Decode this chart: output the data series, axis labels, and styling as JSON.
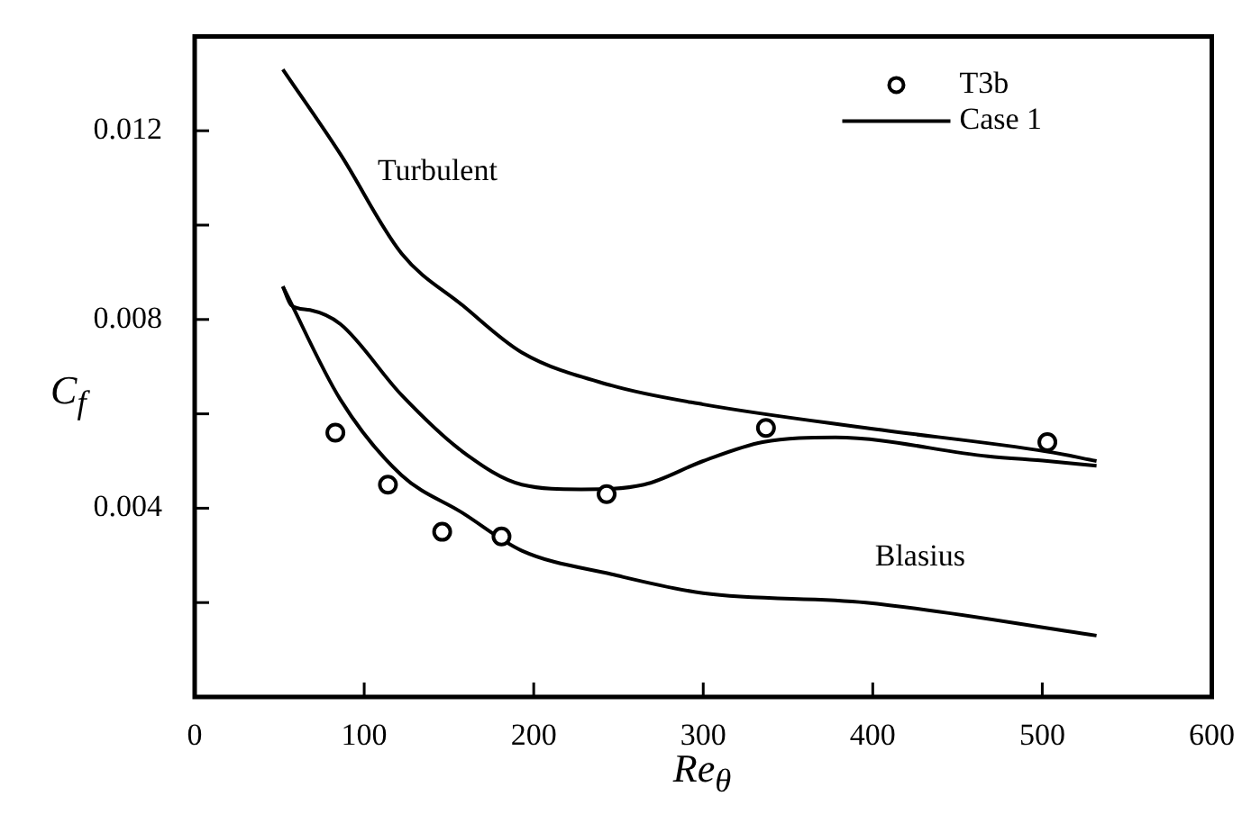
{
  "chart_data": {
    "type": "line",
    "xlabel": "Re$_{θ}$",
    "ylabel": "C$_{f}$",
    "xlim": [
      0,
      600
    ],
    "xticks": [
      0,
      100,
      200,
      300,
      400,
      500,
      600
    ],
    "ylim": [
      0,
      0.014
    ],
    "yticks": [
      {
        "value": 0.002,
        "label": null
      },
      {
        "value": 0.004,
        "label": "0.004"
      },
      {
        "value": 0.006,
        "label": null
      },
      {
        "value": 0.008,
        "label": "0.008"
      },
      {
        "value": 0.01,
        "label": null
      },
      {
        "value": 0.012,
        "label": "0.012"
      }
    ],
    "legend": "top right",
    "annotations": [
      "Turbulent",
      "Blasius"
    ],
    "series": [
      {
        "name": "T3b",
        "type": "scatter",
        "marker": "circle",
        "color": "#000000",
        "x": [
          83,
          114,
          146,
          181,
          243,
          337,
          503
        ],
        "values": [
          0.0056,
          0.0045,
          0.0035,
          0.0034,
          0.0043,
          0.0057,
          0.0054
        ]
      },
      {
        "name": "Case 1",
        "type": "line",
        "color": "#000000",
        "x": [
          52,
          57,
          68,
          86,
          122,
          158,
          193,
          228,
          265,
          300,
          335,
          378,
          468,
          503,
          532
        ],
        "values": [
          0.0087,
          0.0083,
          0.0082,
          0.0079,
          0.0064,
          0.0052,
          0.0045,
          0.0044,
          0.0045,
          0.005,
          0.0054,
          0.0055,
          0.0051,
          0.005,
          0.0049
        ]
      },
      {
        "type": "line",
        "color": "#000000",
        "x": [
          52,
          86,
          122,
          158,
          193,
          246,
          300,
          396,
          503,
          532
        ],
        "values": [
          0.0133,
          0.0115,
          0.0094,
          0.0083,
          0.0073,
          0.0066,
          0.0062,
          0.0057,
          0.0052,
          0.005
        ]
      },
      {
        "type": "line",
        "color": "#000000",
        "x": [
          52,
          86,
          122,
          158,
          193,
          246,
          300,
          396,
          532
        ],
        "values": [
          0.0087,
          0.0063,
          0.0047,
          0.0039,
          0.0031,
          0.0026,
          0.0022,
          0.002,
          0.0013
        ]
      }
    ]
  }
}
